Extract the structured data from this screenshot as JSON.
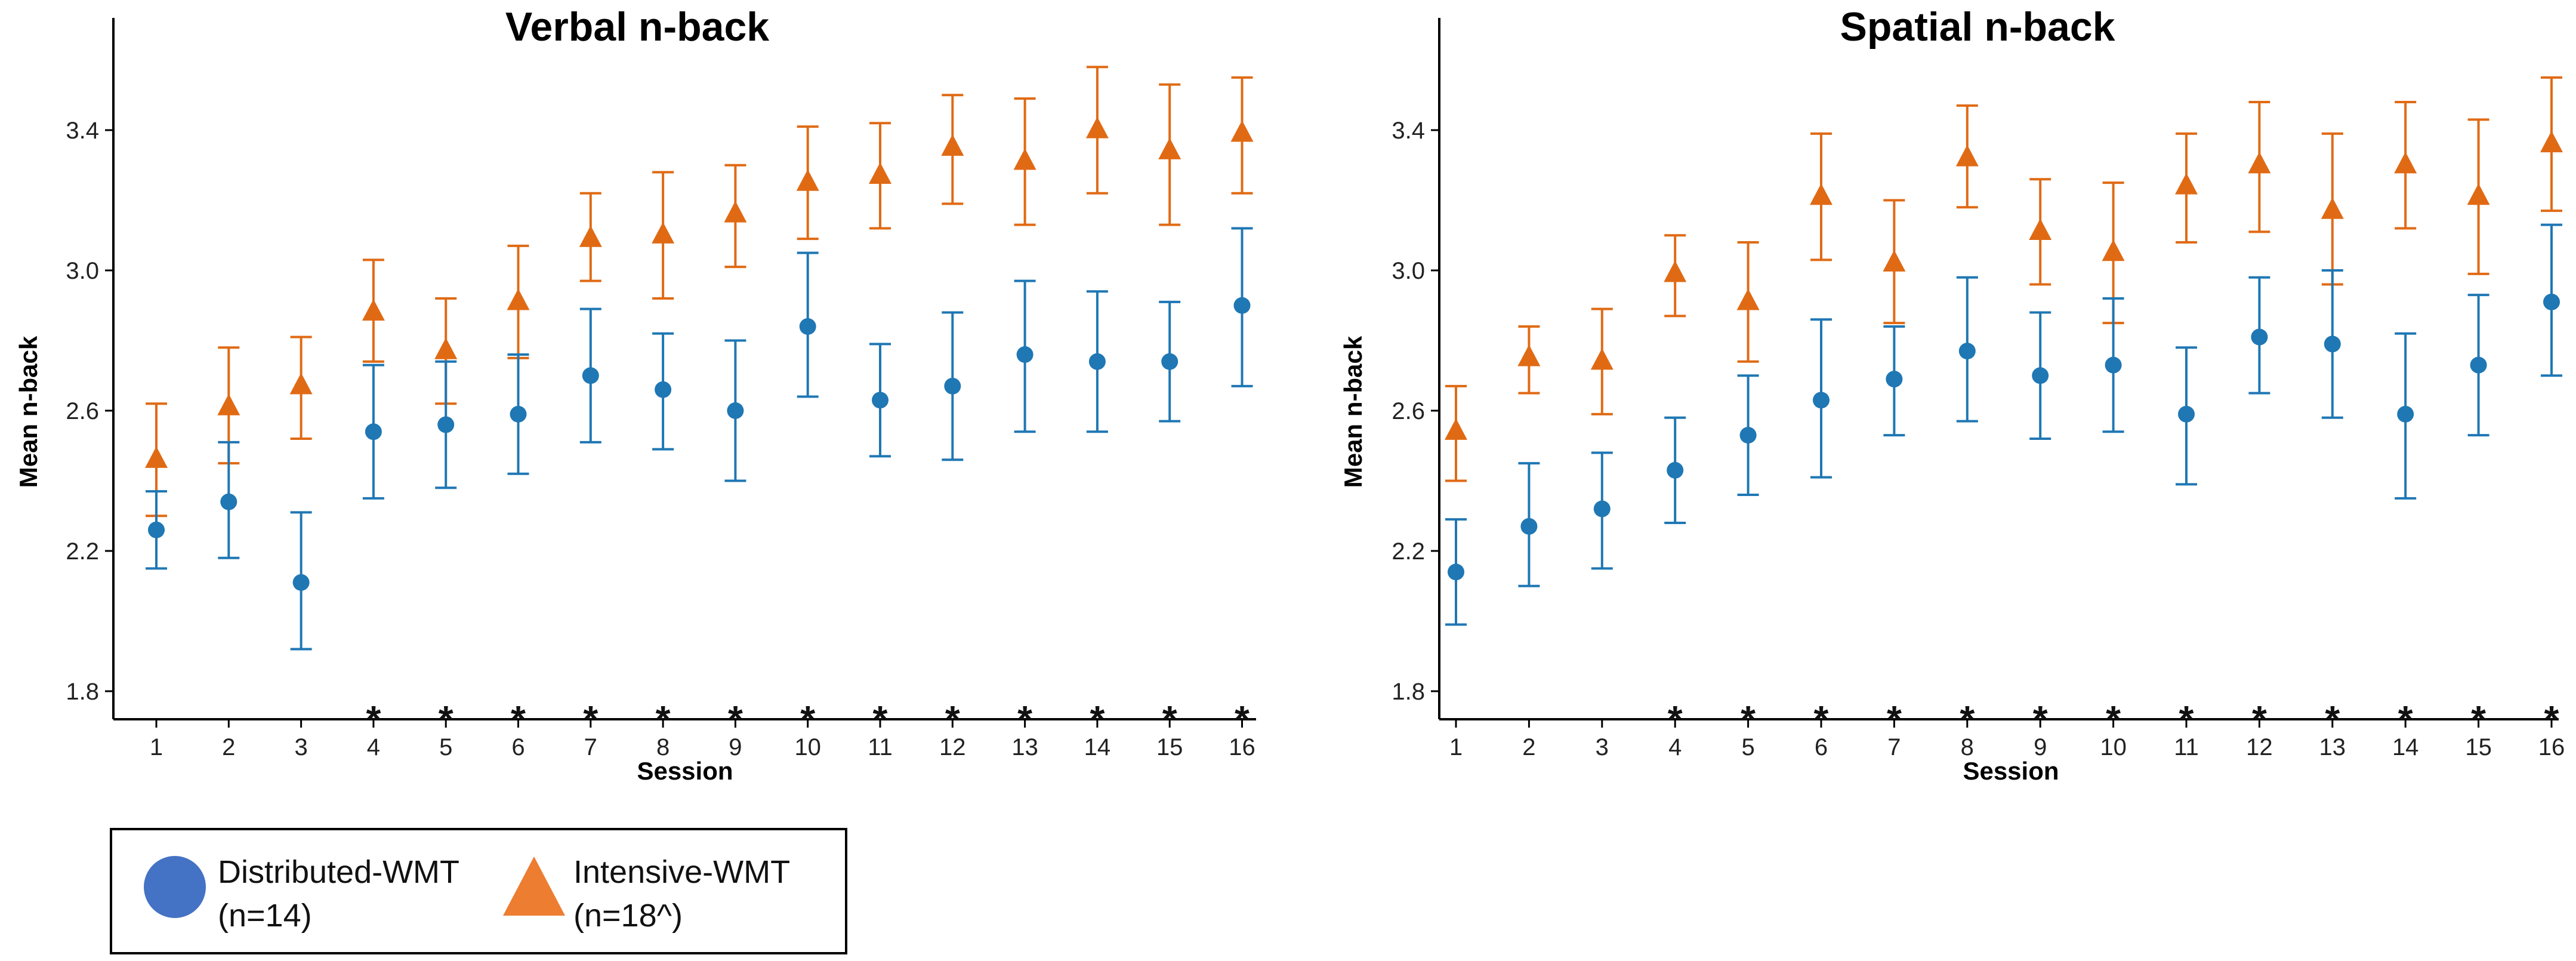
{
  "legend": {
    "series": [
      {
        "label": "Distributed-WMT",
        "sub": "(n=14)",
        "color": "#1f77b4",
        "legend_color": "#4472c4",
        "marker": "circle"
      },
      {
        "label": "Intensive-WMT",
        "sub": "(n=18^)",
        "color": "#e06a14",
        "legend_color": "#ed7d31",
        "marker": "triangle"
      }
    ]
  },
  "chart_data": [
    {
      "type": "scatter",
      "title": "Verbal n-back",
      "xlabel": "Session",
      "ylabel": "Mean n-back",
      "ylim": [
        1.72,
        3.72
      ],
      "yticks": [
        "1.8",
        "2.2",
        "2.6",
        "3.0",
        "3.4"
      ],
      "categories": [
        "1",
        "2",
        "3",
        "4",
        "5",
        "6",
        "7",
        "8",
        "9",
        "10",
        "11",
        "12",
        "13",
        "14",
        "15",
        "16"
      ],
      "significance_marker": "*",
      "significant_sessions": [
        "4",
        "5",
        "6",
        "7",
        "8",
        "9",
        "10",
        "11",
        "12",
        "13",
        "14",
        "15",
        "16"
      ],
      "series": [
        {
          "name": "Distributed-WMT",
          "color": "#1f77b4",
          "marker": "circle",
          "values": [
            2.26,
            2.34,
            2.11,
            2.54,
            2.56,
            2.59,
            2.7,
            2.66,
            2.6,
            2.84,
            2.63,
            2.67,
            2.76,
            2.74,
            2.74,
            2.9
          ],
          "lower": [
            2.15,
            2.18,
            1.92,
            2.35,
            2.38,
            2.42,
            2.51,
            2.49,
            2.4,
            2.64,
            2.47,
            2.46,
            2.54,
            2.54,
            2.57,
            2.67
          ],
          "upper": [
            2.37,
            2.51,
            2.31,
            2.73,
            2.74,
            2.76,
            2.89,
            2.82,
            2.8,
            3.05,
            2.79,
            2.88,
            2.97,
            2.94,
            2.91,
            3.12
          ]
        },
        {
          "name": "Intensive-WMT",
          "color": "#e06a14",
          "marker": "triangle",
          "values": [
            2.46,
            2.61,
            2.67,
            2.88,
            2.77,
            2.91,
            3.09,
            3.1,
            3.16,
            3.25,
            3.27,
            3.35,
            3.31,
            3.4,
            3.34,
            3.39
          ],
          "lower": [
            2.3,
            2.45,
            2.52,
            2.74,
            2.62,
            2.75,
            2.97,
            2.92,
            3.01,
            3.09,
            3.12,
            3.19,
            3.13,
            3.22,
            3.13,
            3.22
          ],
          "upper": [
            2.62,
            2.78,
            2.81,
            3.03,
            2.92,
            3.07,
            3.22,
            3.28,
            3.3,
            3.41,
            3.42,
            3.5,
            3.49,
            3.58,
            3.53,
            3.55
          ]
        }
      ]
    },
    {
      "type": "scatter",
      "title": "Spatial n-back",
      "xlabel": "Session",
      "ylabel": "Mean n-back",
      "ylim": [
        1.72,
        3.72
      ],
      "yticks": [
        "1.8",
        "2.2",
        "2.6",
        "3.0",
        "3.4"
      ],
      "categories": [
        "1",
        "2",
        "3",
        "4",
        "5",
        "6",
        "7",
        "8",
        "9",
        "10",
        "11",
        "12",
        "13",
        "14",
        "15",
        "16"
      ],
      "significance_marker": "*",
      "significant_sessions": [
        "4",
        "5",
        "6",
        "7",
        "8",
        "9",
        "10",
        "11",
        "12",
        "13",
        "14",
        "15",
        "16"
      ],
      "series": [
        {
          "name": "Distributed-WMT",
          "color": "#1f77b4",
          "marker": "circle",
          "values": [
            2.14,
            2.27,
            2.32,
            2.43,
            2.53,
            2.63,
            2.69,
            2.77,
            2.7,
            2.73,
            2.59,
            2.81,
            2.79,
            2.59,
            2.73,
            2.91
          ],
          "lower": [
            1.99,
            2.1,
            2.15,
            2.28,
            2.36,
            2.41,
            2.53,
            2.57,
            2.52,
            2.54,
            2.39,
            2.65,
            2.58,
            2.35,
            2.53,
            2.7
          ],
          "upper": [
            2.29,
            2.45,
            2.48,
            2.58,
            2.7,
            2.86,
            2.84,
            2.98,
            2.88,
            2.92,
            2.78,
            2.98,
            3.0,
            2.82,
            2.93,
            3.13
          ]
        },
        {
          "name": "Intensive-WMT",
          "color": "#e06a14",
          "marker": "triangle",
          "values": [
            2.54,
            2.75,
            2.74,
            2.99,
            2.91,
            3.21,
            3.02,
            3.32,
            3.11,
            3.05,
            3.24,
            3.3,
            3.17,
            3.3,
            3.21,
            3.36
          ],
          "lower": [
            2.4,
            2.65,
            2.59,
            2.87,
            2.74,
            3.03,
            2.85,
            3.18,
            2.96,
            2.85,
            3.08,
            3.11,
            2.96,
            3.12,
            2.99,
            3.17
          ],
          "upper": [
            2.67,
            2.84,
            2.89,
            3.1,
            3.08,
            3.39,
            3.2,
            3.47,
            3.26,
            3.25,
            3.39,
            3.48,
            3.39,
            3.48,
            3.43,
            3.55
          ]
        }
      ]
    }
  ]
}
